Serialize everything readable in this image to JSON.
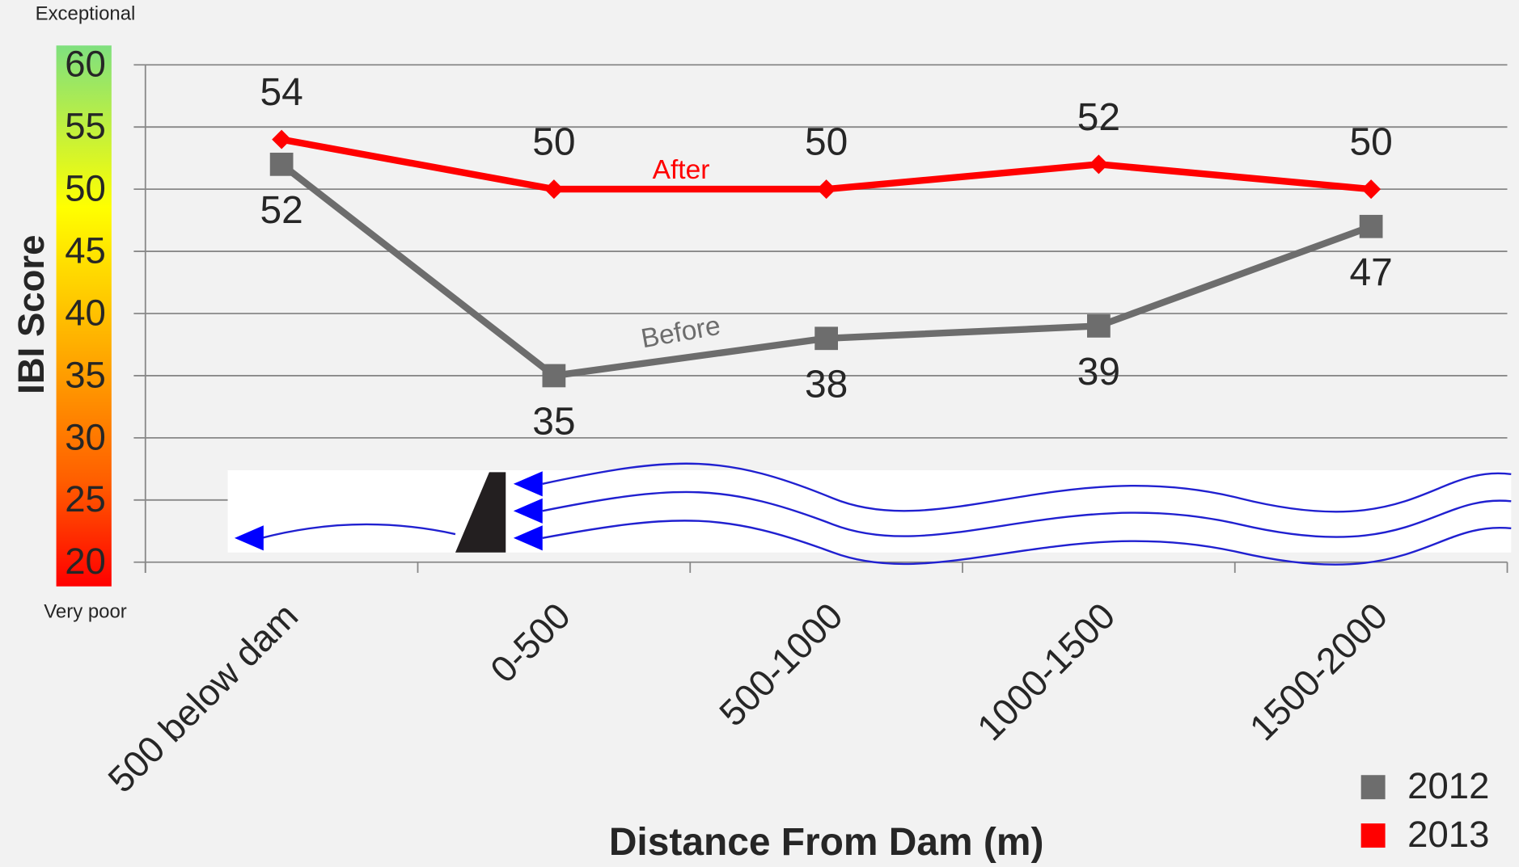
{
  "chart_data": {
    "type": "line",
    "y_label": "IBI Score",
    "x_label": "Distance From Dam (m)",
    "categories": [
      "500 below dam",
      "0-500",
      "500-1000",
      "1000-1500",
      "1500-2000"
    ],
    "series": [
      {
        "name": "2012",
        "color": "#6d6d6d",
        "marker": "square",
        "values": [
          52,
          35,
          38,
          39,
          47
        ]
      },
      {
        "name": "2013",
        "color": "#ff0000",
        "marker": "diamond",
        "values": [
          54,
          50,
          50,
          52,
          50
        ]
      }
    ],
    "ylim": [
      20,
      60
    ],
    "yticks": [
      20,
      25,
      30,
      35,
      40,
      45,
      50,
      55,
      60
    ],
    "grid": true,
    "annotations": [
      "Exceptional",
      "Very poor",
      "After",
      "Before"
    ],
    "legend": "bottom-right"
  }
}
